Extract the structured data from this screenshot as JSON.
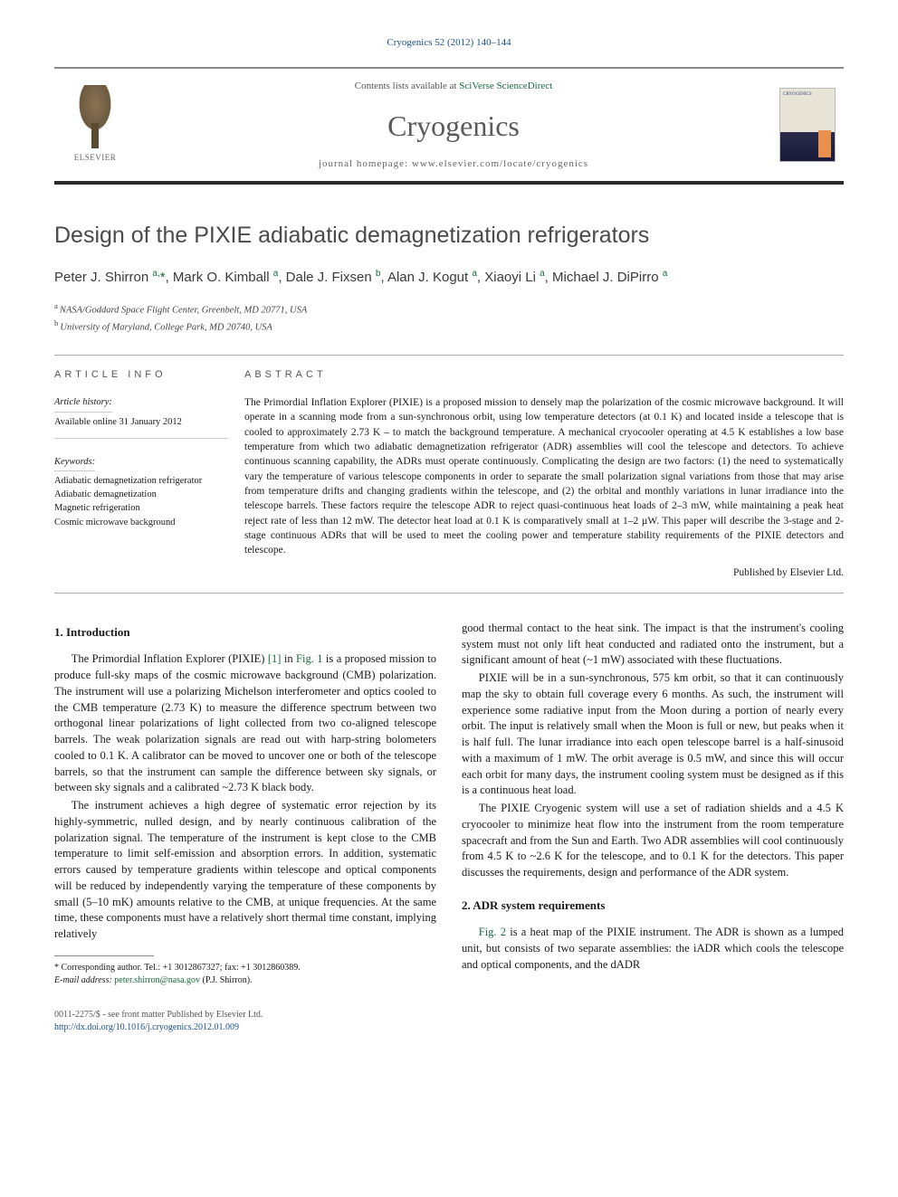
{
  "colors": {
    "link_green": "#1a6b3f",
    "link_blue": "#1a4f8f",
    "rule_dark": "#2b2b2b",
    "text_body": "#1a1a1a",
    "text_muted": "#5a5a5a"
  },
  "citation": "Cryogenics 52 (2012) 140–144",
  "header": {
    "contents_prefix": "Contents lists available at ",
    "contents_link": "SciVerse ScienceDirect",
    "journal": "Cryogenics",
    "homepage_label": "journal homepage: ",
    "homepage_url": "www.elsevier.com/locate/cryogenics",
    "publisher": "ELSEVIER"
  },
  "title": "Design of the PIXIE adiabatic demagnetization refrigerators",
  "authors_html": "Peter J. Shirron <sup>a,</sup><span class='star'>*</span>, Mark O. Kimball <sup>a</sup>, Dale J. Fixsen <sup>b</sup>, Alan J. Kogut <sup>a</sup>, Xiaoyi Li <sup>a</sup>, Michael J. DiPirro <sup>a</sup>",
  "affiliations": {
    "a": "NASA/Goddard Space Flight Center, Greenbelt, MD 20771, USA",
    "b": "University of Maryland, College Park, MD 20740, USA"
  },
  "article_info": {
    "header": "ARTICLE INFO",
    "history_label": "Article history:",
    "history_value": "Available online 31 January 2012",
    "keywords_label": "Keywords:",
    "keywords": [
      "Adiabatic demagnetization refrigerator",
      "Adiabatic demagnetization",
      "Magnetic refrigeration",
      "Cosmic microwave background"
    ]
  },
  "abstract": {
    "header": "ABSTRACT",
    "text": "The Primordial Inflation Explorer (PIXIE) is a proposed mission to densely map the polarization of the cosmic microwave background. It will operate in a scanning mode from a sun-synchronous orbit, using low temperature detectors (at 0.1 K) and located inside a telescope that is cooled to approximately 2.73 K – to match the background temperature. A mechanical cryocooler operating at 4.5 K establishes a low base temperature from which two adiabatic demagnetization refrigerator (ADR) assemblies will cool the telescope and detectors. To achieve continuous scanning capability, the ADRs must operate continuously. Complicating the design are two factors: (1) the need to systematically vary the temperature of various telescope components in order to separate the small polarization signal variations from those that may arise from temperature drifts and changing gradients within the telescope, and (2) the orbital and monthly variations in lunar irradiance into the telescope barrels. These factors require the telescope ADR to reject quasi-continuous heat loads of 2–3 mW, while maintaining a peak heat reject rate of less than 12 mW. The detector heat load at 0.1 K is comparatively small at 1–2 µW. This paper will describe the 3-stage and 2-stage continuous ADRs that will be used to meet the cooling power and temperature stability requirements of the PIXIE detectors and telescope.",
    "publisher_line": "Published by Elsevier Ltd."
  },
  "sections": {
    "s1": {
      "heading": "1. Introduction",
      "p1_a": "The Primordial Inflation Explorer (PIXIE) ",
      "p1_ref1": "[1]",
      "p1_b": " in ",
      "p1_fig": "Fig. 1",
      "p1_c": " is a proposed mission to produce full-sky maps of the cosmic microwave background (CMB) polarization. The instrument will use a polarizing Michelson interferometer and optics cooled to the CMB temperature (2.73 K) to measure the difference spectrum between two orthogonal linear polarizations of light collected from two co-aligned telescope barrels. The weak polarization signals are read out with harp-string bolometers cooled to 0.1 K. A calibrator can be moved to uncover one or both of the telescope barrels, so that the instrument can sample the difference between sky signals, or between sky signals and a calibrated ~2.73 K black body.",
      "p2": "The instrument achieves a high degree of systematic error rejection by its highly-symmetric, nulled design, and by nearly continuous calibration of the polarization signal. The temperature of the instrument is kept close to the CMB temperature to limit self-emission and absorption errors. In addition, systematic errors caused by temperature gradients within telescope and optical components will be reduced by independently varying the temperature of these components by small (5–10 mK) amounts relative to the CMB, at unique frequencies. At the same time, these components must have a relatively short thermal time constant, implying relatively",
      "p2b": "good thermal contact to the heat sink. The impact is that the instrument's cooling system must not only lift heat conducted and radiated onto the instrument, but a significant amount of heat (~1 mW) associated with these fluctuations.",
      "p3": "PIXIE will be in a sun-synchronous, 575 km orbit, so that it can continuously map the sky to obtain full coverage every 6 months. As such, the instrument will experience some radiative input from the Moon during a portion of nearly every orbit. The input is relatively small when the Moon is full or new, but peaks when it is half full. The lunar irradiance into each open telescope barrel is a half-sinusoid with a maximum of 1 mW. The orbit average is 0.5 mW, and since this will occur each orbit for many days, the instrument cooling system must be designed as if this is a continuous heat load.",
      "p4": "The PIXIE Cryogenic system will use a set of radiation shields and a 4.5 K cryocooler to minimize heat flow into the instrument from the room temperature spacecraft and from the Sun and Earth. Two ADR assemblies will cool continuously from 4.5 K to ~2.6 K for the telescope, and to 0.1 K for the detectors. This paper discusses the requirements, design and performance of the ADR system."
    },
    "s2": {
      "heading": "2. ADR system requirements",
      "p1_fig": "Fig. 2",
      "p1": " is a heat map of the PIXIE instrument. The ADR is shown as a lumped unit, but consists of two separate assemblies: the iADR which cools the telescope and optical components, and the dADR"
    }
  },
  "footnote": {
    "corr": "* Corresponding author. Tel.: +1 3012867327; fax: +1 3012860389.",
    "email_label": "E-mail address: ",
    "email": "peter.shirron@nasa.gov",
    "email_who": " (P.J. Shirron)."
  },
  "footer": {
    "issn": "0011-2275/$ - see front matter Published by Elsevier Ltd.",
    "doi_label": "http://dx.doi.org/",
    "doi": "10.1016/j.cryogenics.2012.01.009"
  }
}
